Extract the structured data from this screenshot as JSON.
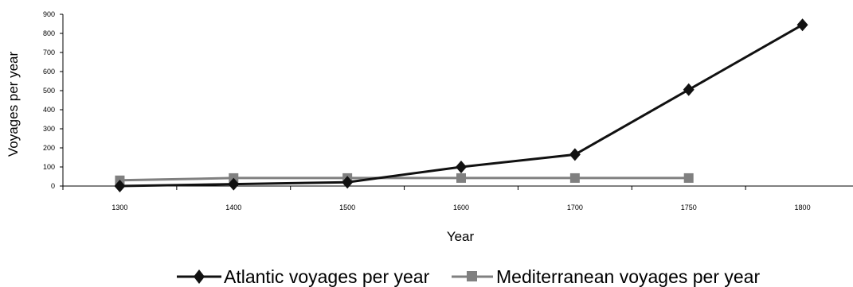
{
  "chart_data": {
    "type": "line",
    "categories": [
      "1300",
      "1400",
      "1500",
      "1600",
      "1700",
      "1750",
      "1800"
    ],
    "series": [
      {
        "name": "Atlantic voyages per year",
        "color": "#111111",
        "marker": "diamond",
        "values": [
          0,
          10,
          20,
          100,
          165,
          505,
          845
        ]
      },
      {
        "name": "Mediterranean voyages per year",
        "color": "#808080",
        "marker": "square",
        "values": [
          30,
          42,
          42,
          42,
          42,
          42,
          null
        ]
      }
    ],
    "xlabel": "Year",
    "ylabel": "Voyages per year",
    "ylim": [
      0,
      900
    ],
    "yticks": [
      "0",
      "100",
      "200",
      "300",
      "400",
      "500",
      "600",
      "700",
      "800",
      "900"
    ],
    "grid": false,
    "legend_position": "bottom"
  }
}
